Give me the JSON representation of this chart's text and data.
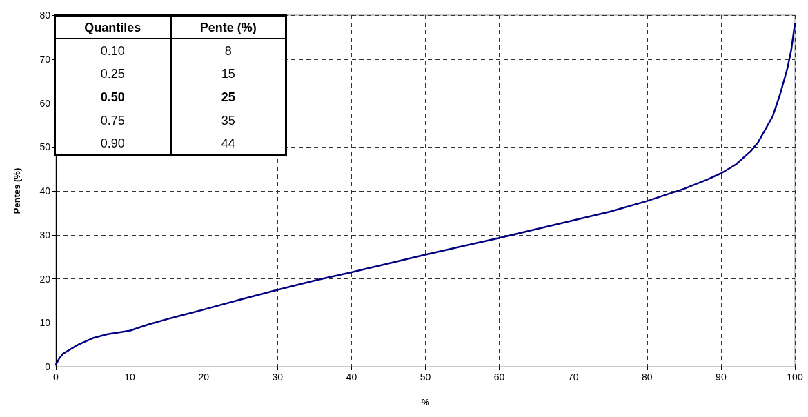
{
  "chart_data": {
    "type": "line",
    "xlabel": "%",
    "ylabel": "Pentes (%)",
    "xlim": [
      0,
      100
    ],
    "xticks": [
      0,
      10,
      20,
      30,
      40,
      50,
      60,
      70,
      80,
      90,
      100
    ],
    "ylim": [
      0,
      80
    ],
    "yticks": [
      0,
      10,
      20,
      30,
      40,
      50,
      60,
      70,
      80
    ],
    "grid": true,
    "line_style": "solid",
    "marker": "none",
    "annotations": [
      "Quantiles",
      "Pente (%)",
      "0.10",
      "8",
      "0.25",
      "15",
      "0.50",
      "25",
      "0.75",
      "35",
      "0.90",
      "44"
    ],
    "series": [
      {
        "color": "#000080",
        "x": [
          0,
          0.5,
          1,
          2,
          3,
          5,
          7,
          10,
          12.5,
          15,
          20,
          25,
          30,
          35,
          40,
          45,
          50,
          55,
          60,
          65,
          70,
          75,
          80,
          85,
          88,
          90,
          92,
          94,
          95,
          96,
          97,
          98,
          99,
          99.5,
          100
        ],
        "values": [
          0.5,
          2,
          3,
          4,
          5,
          6.5,
          7.4,
          8.2,
          9.6,
          10.8,
          13,
          15.3,
          17.5,
          19.6,
          21.5,
          23.5,
          25.5,
          27.4,
          29.3,
          31.3,
          33.3,
          35.3,
          37.7,
          40.5,
          42.5,
          44,
          46,
          49,
          51,
          54,
          57,
          62,
          68,
          72,
          78
        ]
      }
    ]
  }
}
